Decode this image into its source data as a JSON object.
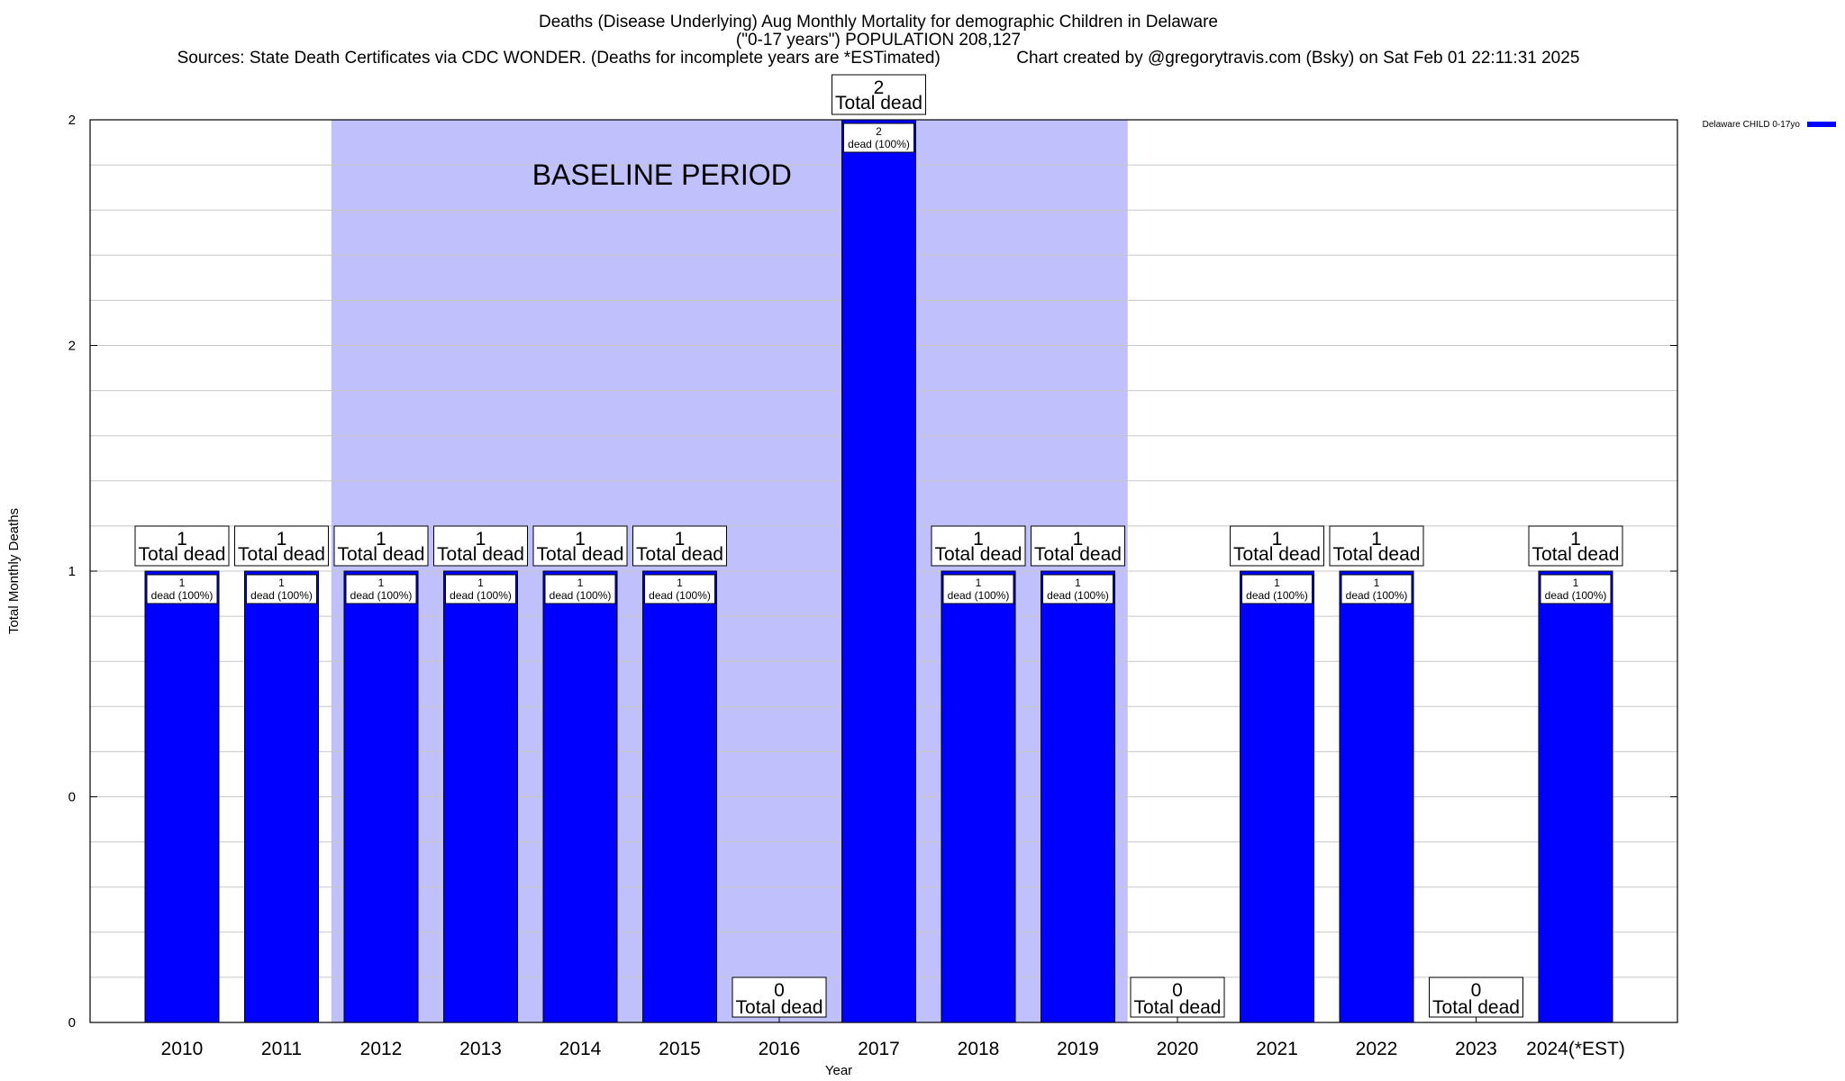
{
  "chart_data": {
    "type": "bar",
    "title_lines": [
      "Deaths (Disease Underlying) Aug Monthly Mortality for demographic Children in Delaware",
      "(\"0-17 years\") POPULATION 208,127",
      "Sources: State Death Certificates via CDC WONDER. (Deaths for incomplete years are *ESTimated)                Chart created by @gregorytravis.com (Bsky) on Sat Feb 01 22:11:31 2025"
    ],
    "xlabel": "Year",
    "ylabel": "Total Monthly Deaths",
    "ylim": [
      0,
      2
    ],
    "y_tick_values": [
      0,
      0.5,
      1,
      1.5,
      2
    ],
    "y_tick_labels": [
      "0",
      "0",
      "1",
      "2",
      "2"
    ],
    "grid": true,
    "legend": {
      "position": "top-right",
      "entries": [
        {
          "label": "Delaware CHILD 0-17yo",
          "color": "#0000ff"
        }
      ]
    },
    "baseline_label": "BASELINE PERIOD",
    "baseline_range": [
      "2012",
      "2019"
    ],
    "categories": [
      "2010",
      "2011",
      "2012",
      "2013",
      "2014",
      "2015",
      "2016",
      "2017",
      "2018",
      "2019",
      "2020",
      "2021",
      "2022",
      "2023",
      "2024(*EST)"
    ],
    "series": [
      {
        "name": "Delaware CHILD 0-17yo",
        "color": "#0000ff",
        "values": [
          1,
          1,
          1,
          1,
          1,
          1,
          0,
          2,
          1,
          1,
          0,
          1,
          1,
          0,
          1
        ]
      }
    ],
    "total_label_suffix": "Total dead",
    "bar_label_suffix": "dead (100%)"
  },
  "colors": {
    "bar": "#0000ff",
    "baseline_shade": "#c0c0fc",
    "grid": "#c8c8c8"
  }
}
